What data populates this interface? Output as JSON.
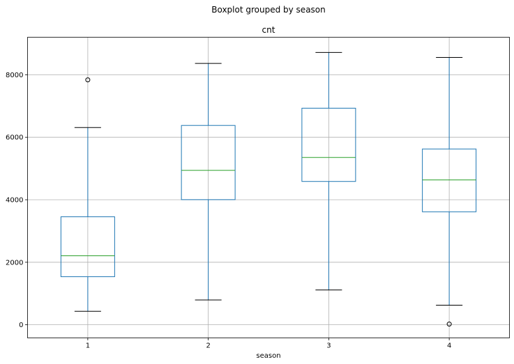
{
  "chart_data": {
    "type": "boxplot",
    "suptitle": "Boxplot grouped by season",
    "title": "cnt",
    "xlabel": "season",
    "ylabel": "",
    "categories": [
      "1",
      "2",
      "3",
      "4"
    ],
    "ylim": [
      -420,
      9200
    ],
    "yticks": [
      0,
      2000,
      4000,
      6000,
      8000
    ],
    "grid": true,
    "colors": {
      "box": "#1f77b4",
      "median": "#2ca02c",
      "caps": "#000000",
      "grid": "#b0b0b0"
    },
    "boxes": [
      {
        "category": "1",
        "whisker_low": 431,
        "q1": 1538,
        "median": 2209,
        "q3": 3456,
        "whisker_high": 6312,
        "outliers": [
          7836
        ]
      },
      {
        "category": "2",
        "whisker_low": 795,
        "q1": 4004,
        "median": 4941,
        "q3": 6378,
        "whisker_high": 8362,
        "outliers": []
      },
      {
        "category": "3",
        "whisker_low": 1115,
        "q1": 4586,
        "median": 5354,
        "q3": 6930,
        "whisker_high": 8714,
        "outliers": []
      },
      {
        "category": "4",
        "whisker_low": 627,
        "q1": 3615,
        "median": 4634,
        "q3": 5624,
        "whisker_high": 8555,
        "outliers": [
          22
        ]
      }
    ]
  }
}
